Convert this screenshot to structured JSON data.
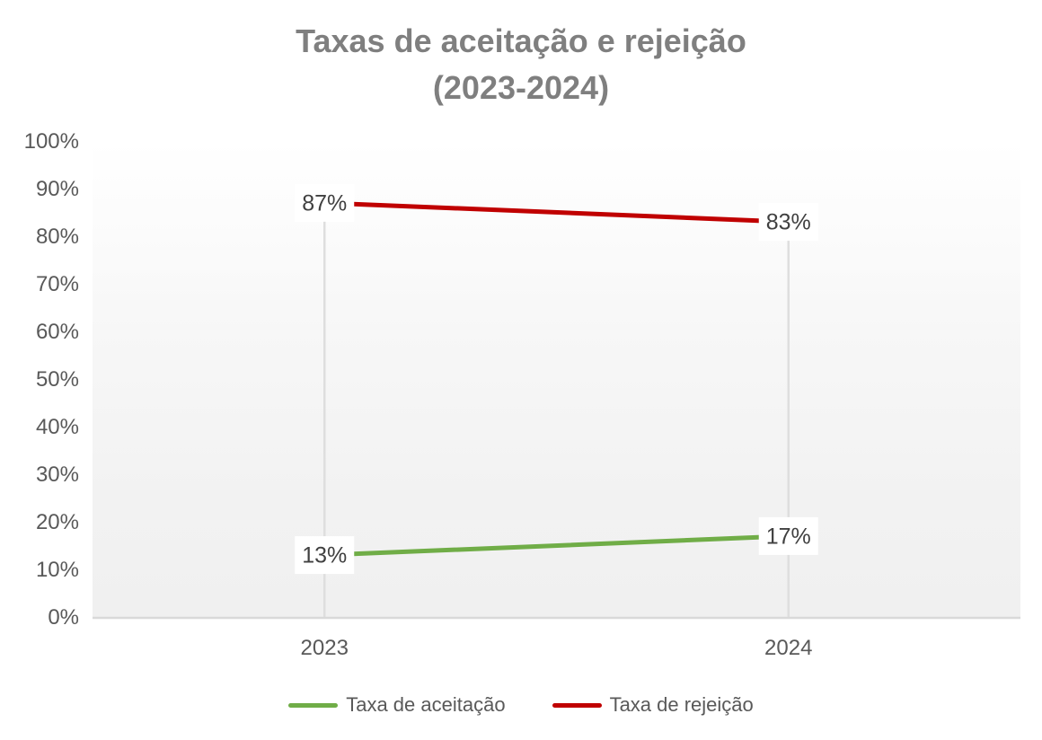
{
  "chart_data": {
    "type": "line",
    "title": "Taxas de aceitação e rejeição (2023-2024)",
    "title_lines": [
      "Taxas de aceitação e rejeição",
      "(2023-2024)"
    ],
    "categories": [
      "2023",
      "2024"
    ],
    "series": [
      {
        "name": "Taxa de aceitação",
        "values": [
          13,
          17
        ],
        "labels": [
          "13%",
          "17%"
        ],
        "color": "#70ad47"
      },
      {
        "name": "Taxa de rejeição",
        "values": [
          87,
          83
        ],
        "labels": [
          "87%",
          "83%"
        ],
        "color": "#c00000"
      }
    ],
    "ylim": [
      0,
      100
    ],
    "ytick_step": 10,
    "ytick_labels": [
      "0%",
      "10%",
      "20%",
      "30%",
      "40%",
      "50%",
      "60%",
      "70%",
      "80%",
      "90%",
      "100%"
    ],
    "grid": "none",
    "drop_lines": true,
    "legend_position": "bottom",
    "data_label_position": "center",
    "data_label_background": "#ffffff"
  },
  "colors": {
    "background": "#ffffff",
    "title_text": "#7f7f7f",
    "axis_text": "#595959",
    "data_label_text": "#404040",
    "axis_line": "#d9d9d9",
    "drop_line": "#dedede",
    "plot_gradient_top": "#ffffff",
    "plot_gradient_bottom": "#f0f0f0"
  }
}
